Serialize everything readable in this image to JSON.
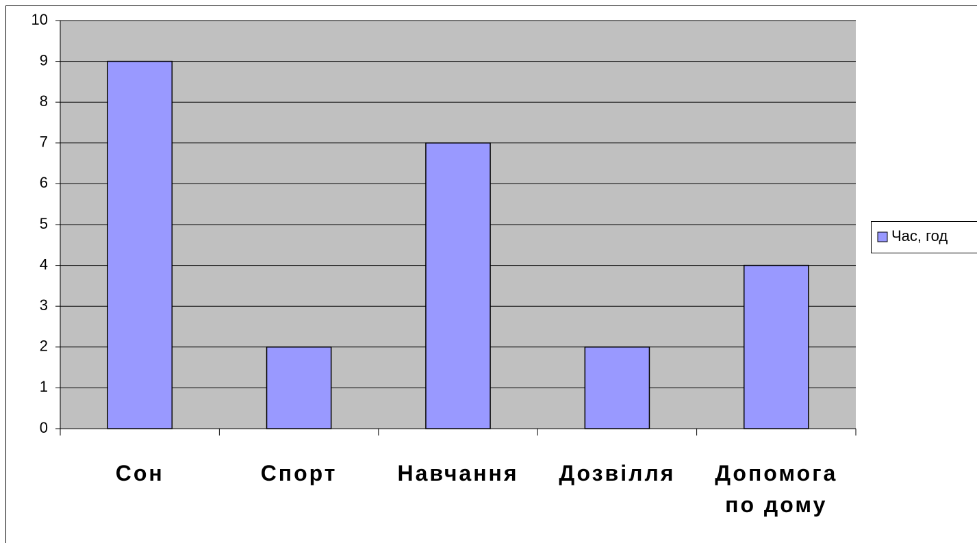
{
  "chart_data": {
    "type": "bar",
    "categories": [
      "Сон",
      "Спорт",
      "Навчання",
      "Дозвілля",
      "Допомога по дому"
    ],
    "series": [
      {
        "name": "Час, год",
        "color": "#9999ff",
        "values": [
          9,
          2,
          7,
          2,
          4
        ]
      }
    ],
    "ylim": [
      0,
      10
    ],
    "yticks": [
      0,
      1,
      2,
      3,
      4,
      5,
      6,
      7,
      8,
      9,
      10
    ],
    "grid": true,
    "legend": "right"
  }
}
